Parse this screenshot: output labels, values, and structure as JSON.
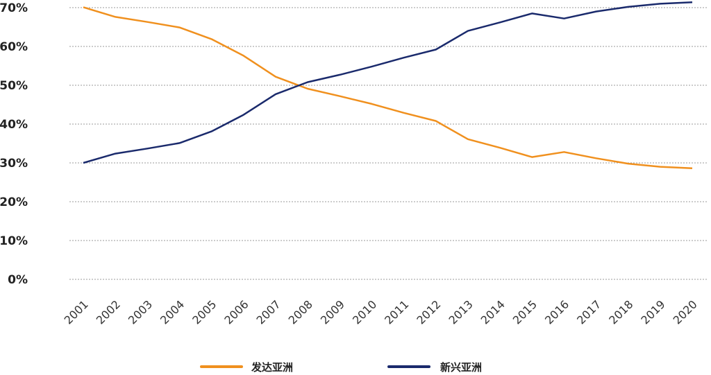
{
  "chart_data": {
    "type": "line",
    "title": "",
    "xlabel": "",
    "ylabel": "",
    "x": [
      "2001",
      "2002",
      "2003",
      "2004",
      "2005",
      "2006",
      "2007",
      "2008",
      "2009",
      "2010",
      "2011",
      "2012",
      "2013",
      "2014",
      "2015",
      "2016",
      "2017",
      "2018",
      "2019",
      "2020"
    ],
    "ylim": [
      0,
      70
    ],
    "yticks": [
      "0%",
      "10%",
      "20%",
      "30%",
      "40%",
      "50%",
      "60%",
      "70%"
    ],
    "grid": true,
    "legend_position": "bottom",
    "series": [
      {
        "name": "发达亚洲",
        "color": "#f0901e",
        "values": [
          70.1,
          67.6,
          66.3,
          64.9,
          61.9,
          57.6,
          52.2,
          49.1,
          47.2,
          45.2,
          42.9,
          40.8,
          36.1,
          33.9,
          31.5,
          32.8,
          31.2,
          29.8,
          29.0,
          28.6
        ]
      },
      {
        "name": "新兴亚洲",
        "color": "#1a2a6c",
        "values": [
          30.0,
          32.4,
          33.7,
          35.1,
          38.1,
          42.4,
          47.7,
          50.8,
          52.7,
          54.8,
          57.1,
          59.2,
          64.0,
          66.2,
          68.5,
          67.2,
          69.0,
          70.2,
          71.0,
          71.4
        ]
      }
    ]
  }
}
